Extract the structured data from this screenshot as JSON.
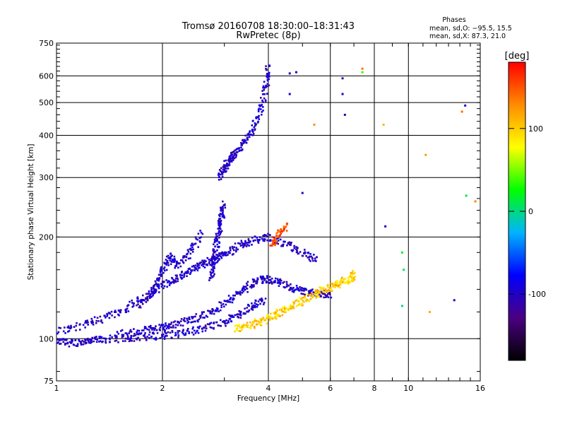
{
  "chart_data": {
    "type": "scatter",
    "title": "Tromsø 20160708 18:30:00–18:31:43",
    "subtitle": "RwPretec (8p)",
    "xlabel": "Frequency [MHz]",
    "ylabel": "Stationary phase Virtual Height [km]",
    "x_scale": "log",
    "y_scale": "log",
    "xlim": [
      1,
      16
    ],
    "ylim": [
      75,
      750
    ],
    "x_ticks": [
      1,
      2,
      4,
      6,
      8,
      10,
      16
    ],
    "y_ticks": [
      75,
      100,
      200,
      300,
      400,
      500,
      600,
      750
    ],
    "grid": true,
    "phase_info": {
      "title": "Phases",
      "line_o": "mean, sd,O: −95.5, 15.5",
      "line_x": "mean, sd,X:  87.3, 21.0"
    },
    "colorbar": {
      "label": "[deg]",
      "range": [
        -180,
        180
      ],
      "ticks": [
        100,
        0,
        -100
      ],
      "colormap": "rainbow",
      "color_stops": [
        "#000000",
        "#4b0082",
        "#0000ff",
        "#00b4ff",
        "#00ff00",
        "#ffff00",
        "#ff8c00",
        "#ff0000"
      ]
    },
    "series": [
      {
        "trace": "o-lower",
        "phase_deg": -100,
        "x": [
          1.0,
          1.1,
          1.2,
          1.3,
          1.5,
          1.7,
          2.0,
          2.3,
          2.6,
          3.0,
          3.3,
          3.6,
          3.9
        ],
        "y": [
          98,
          97,
          98,
          99,
          100,
          101,
          102,
          104,
          107,
          112,
          118,
          125,
          130
        ]
      },
      {
        "trace": "o-middle",
        "phase_deg": -100,
        "x": [
          1.5,
          1.8,
          2.0,
          2.2,
          2.5,
          2.8,
          3.1,
          3.4,
          3.7,
          4.0,
          4.4,
          4.8,
          5.2,
          5.6,
          6.0
        ],
        "y": [
          103,
          106,
          108,
          111,
          115,
          121,
          130,
          140,
          148,
          150,
          145,
          140,
          137,
          136,
          135
        ]
      },
      {
        "trace": "o-upper",
        "phase_deg": -100,
        "x": [
          1.0,
          1.2,
          1.4,
          1.6,
          1.8,
          2.0,
          2.2,
          2.4,
          2.6,
          2.8,
          3.0,
          3.3,
          3.6,
          4.0,
          4.5,
          5.0,
          5.5
        ],
        "y": [
          105,
          110,
          116,
          124,
          133,
          143,
          152,
          160,
          166,
          172,
          178,
          188,
          195,
          200,
          190,
          180,
          170
        ]
      },
      {
        "trace": "o-steep",
        "phase_deg": -100,
        "x": [
          1.7,
          1.9,
          2.0,
          2.1,
          2.2,
          2.4,
          2.6
        ],
        "y": [
          123,
          140,
          160,
          175,
          165,
          180,
          205
        ]
      },
      {
        "trace": "o-column-2.9",
        "phase_deg": -100,
        "x": [
          2.75,
          2.8,
          2.85,
          2.9,
          2.95,
          3.0
        ],
        "y": [
          150,
          170,
          190,
          210,
          230,
          250
        ]
      },
      {
        "trace": "o-f2",
        "phase_deg": -100,
        "x": [
          2.9,
          3.0,
          3.1,
          3.2,
          3.4,
          3.6,
          3.8,
          3.95,
          4.0
        ],
        "y": [
          300,
          320,
          340,
          350,
          380,
          410,
          470,
          560,
          640
        ]
      },
      {
        "trace": "x-mode",
        "phase_deg": 100,
        "x": [
          3.2,
          3.5,
          3.8,
          4.1,
          4.4,
          4.8,
          5.2,
          5.6,
          6.0,
          6.4,
          6.8,
          7.0
        ],
        "y": [
          107,
          109,
          112,
          116,
          121,
          127,
          132,
          138,
          142,
          146,
          150,
          155
        ]
      },
      {
        "trace": "x-upper",
        "phase_deg": 150,
        "x": [
          4.1,
          4.3,
          4.5
        ],
        "y": [
          190,
          205,
          215
        ]
      },
      {
        "trace": "scattered",
        "phase_deg": -100,
        "x": [
          4.6,
          4.8,
          5.0,
          6.5,
          6.6,
          8.6,
          14.5,
          4.6,
          6.5,
          13.5
        ],
        "y": [
          610,
          615,
          270,
          590,
          460,
          215,
          490,
          530,
          530,
          130
        ]
      },
      {
        "trace": "scattered-warm",
        "phase_deg": 120,
        "x": [
          8.5,
          11.2,
          14.2,
          15.5,
          7.4,
          11.5,
          5.4
        ],
        "y": [
          430,
          350,
          470,
          255,
          630,
          120,
          430
        ]
      },
      {
        "trace": "scattered-cyan",
        "phase_deg": 20,
        "x": [
          9.6,
          9.7,
          9.6,
          14.6,
          7.4
        ],
        "y": [
          180,
          160,
          125,
          265,
          615
        ]
      }
    ]
  }
}
